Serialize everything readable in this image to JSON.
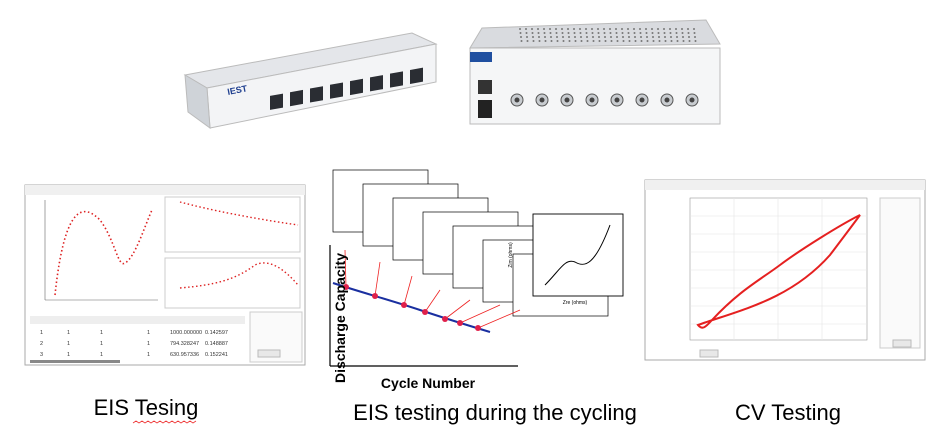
{
  "devices": {
    "brand": "IEST"
  },
  "eis_panel": {
    "caption": "EIS Tesing",
    "table": {
      "rows": [
        [
          "1",
          "1",
          "1",
          "1",
          "1000.000000",
          "0.142597"
        ],
        [
          "2",
          "1",
          "1",
          "1",
          "794.328247",
          "0.148887"
        ],
        [
          "3",
          "1",
          "1",
          "1",
          "630.957336",
          "0.152241"
        ]
      ]
    }
  },
  "cycling_panel": {
    "caption": "EIS testing during the cycling",
    "y_label": "Discharge Capacity",
    "x_label": "Cycle Number",
    "inset_x_label": "Zre (ohms)",
    "inset_y_label": "Zim (ohms)"
  },
  "cv_panel": {
    "caption": "CV Testing"
  }
}
